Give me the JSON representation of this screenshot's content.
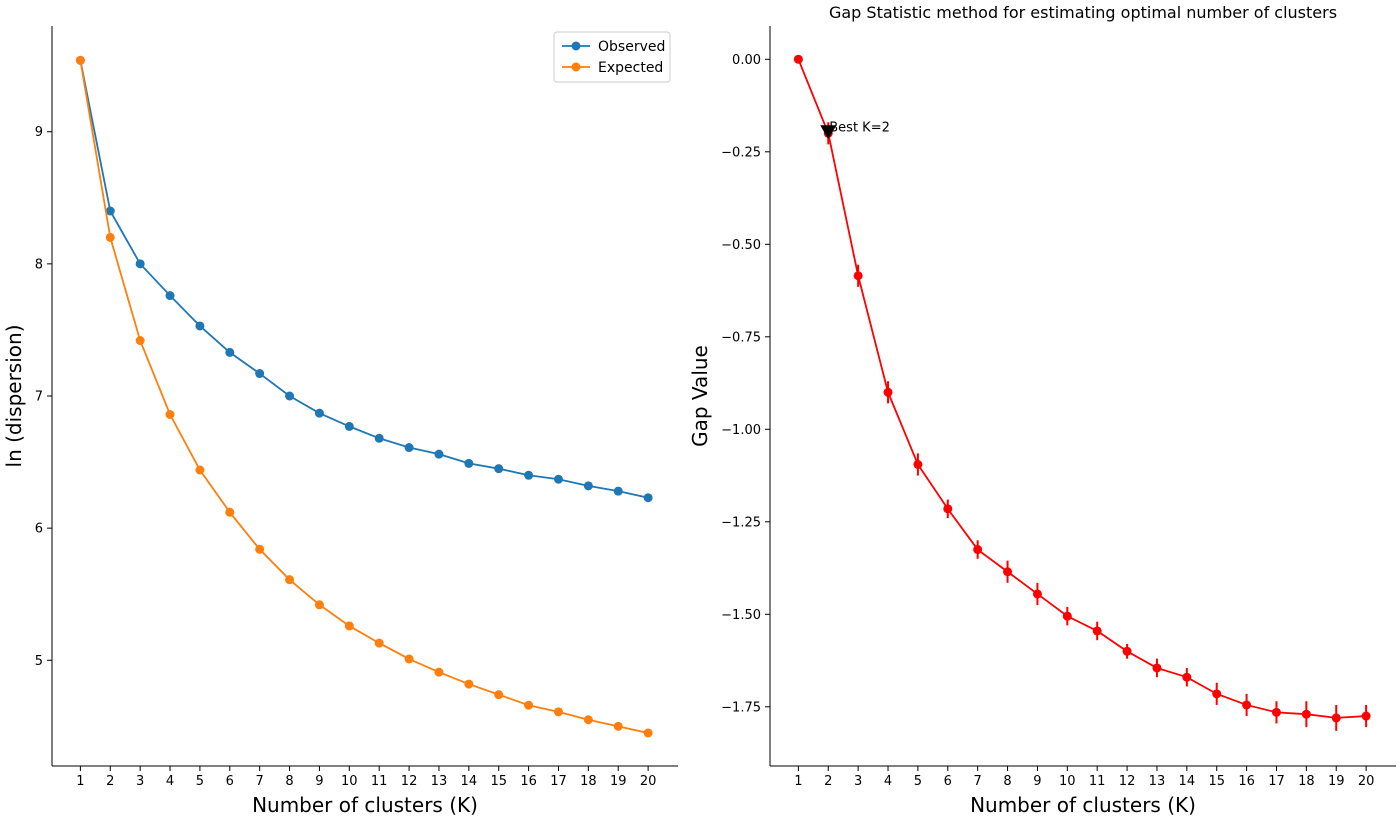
{
  "chart_data": [
    {
      "type": "line",
      "title": "",
      "xlabel": "Number of clusters (K)",
      "ylabel": "ln (dispersion)",
      "x": [
        1,
        2,
        3,
        4,
        5,
        6,
        7,
        8,
        9,
        10,
        11,
        12,
        13,
        14,
        15,
        16,
        17,
        18,
        19,
        20
      ],
      "xticks": [
        "1",
        "2",
        "3",
        "4",
        "5",
        "6",
        "7",
        "8",
        "9",
        "10",
        "11",
        "12",
        "13",
        "14",
        "15",
        "16",
        "17",
        "18",
        "19",
        "20"
      ],
      "ylim": [
        4.2,
        9.8
      ],
      "yticks": [
        "5",
        "6",
        "7",
        "8",
        "9"
      ],
      "grid": false,
      "legend_position": "top-right",
      "series": [
        {
          "name": "Observed",
          "color": "#1f77b4",
          "values": [
            9.54,
            8.4,
            8.0,
            7.76,
            7.53,
            7.33,
            7.17,
            7.0,
            6.87,
            6.77,
            6.68,
            6.61,
            6.56,
            6.49,
            6.45,
            6.4,
            6.37,
            6.32,
            6.28,
            6.23
          ]
        },
        {
          "name": "Expected",
          "color": "#ff7f0e",
          "values": [
            9.54,
            8.2,
            7.42,
            6.86,
            6.44,
            6.12,
            5.84,
            5.61,
            5.42,
            5.26,
            5.13,
            5.01,
            4.91,
            4.82,
            4.74,
            4.66,
            4.61,
            4.55,
            4.5,
            4.45
          ]
        }
      ]
    },
    {
      "type": "line",
      "title": "Gap Statistic method for estimating optimal number of clusters",
      "xlabel": "Number of clusters (K)",
      "ylabel": "Gap Value",
      "x": [
        1,
        2,
        3,
        4,
        5,
        6,
        7,
        8,
        9,
        10,
        11,
        12,
        13,
        14,
        15,
        16,
        17,
        18,
        19,
        20
      ],
      "xticks": [
        "1",
        "2",
        "3",
        "4",
        "5",
        "6",
        "7",
        "8",
        "9",
        "10",
        "11",
        "12",
        "13",
        "14",
        "15",
        "16",
        "17",
        "18",
        "19",
        "20"
      ],
      "ylim": [
        -1.91,
        0.09
      ],
      "yticks": [
        "0.00",
        "−0.25",
        "−0.50",
        "−0.75",
        "−1.00",
        "−1.25",
        "−1.50",
        "−1.75"
      ],
      "grid": false,
      "series": [
        {
          "name": "",
          "color": "#ff0000",
          "values": [
            0.0,
            -0.2,
            -0.585,
            -0.9,
            -1.095,
            -1.215,
            -1.325,
            -1.385,
            -1.445,
            -1.505,
            -1.545,
            -1.6,
            -1.645,
            -1.67,
            -1.715,
            -1.745,
            -1.765,
            -1.77,
            -1.78,
            -1.775
          ],
          "errors": [
            0.0,
            0.03,
            0.03,
            0.03,
            0.03,
            0.025,
            0.025,
            0.03,
            0.03,
            0.025,
            0.025,
            0.02,
            0.025,
            0.025,
            0.03,
            0.03,
            0.03,
            0.035,
            0.035,
            0.03
          ]
        }
      ],
      "annotation": {
        "text": "Best K=2",
        "x": 2,
        "y": -0.2,
        "marker_color": "#000000"
      }
    }
  ]
}
